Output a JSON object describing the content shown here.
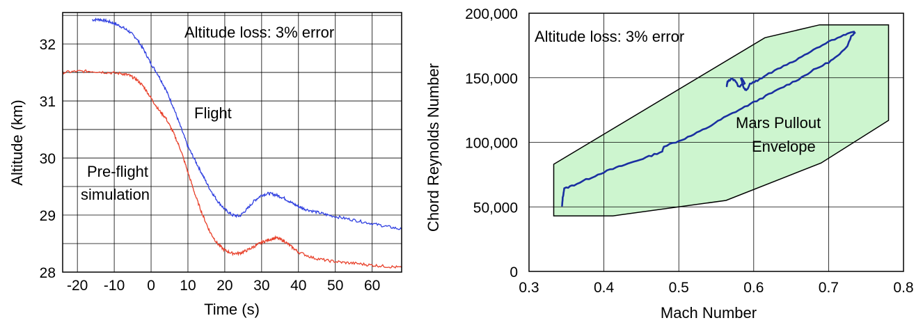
{
  "chart_data": [
    {
      "type": "line",
      "xlabel": "Time (s)",
      "ylabel": "Altitude (km)",
      "xlim": [
        -24,
        68
      ],
      "ylim": [
        28,
        32.55
      ],
      "x_ticks": [
        -20,
        -10,
        0,
        10,
        20,
        30,
        40,
        50,
        60
      ],
      "y_ticks": [
        28,
        29,
        30,
        31,
        32
      ],
      "grid": true,
      "annotation": "Altitude loss: 3% error",
      "series": [
        {
          "name": "Flight",
          "color": "#2f3fe0",
          "x": [
            -16,
            -14,
            -12,
            -10,
            -8,
            -6,
            -4,
            -2,
            0,
            2,
            4,
            6,
            8,
            10,
            12,
            14,
            16,
            18,
            20,
            22,
            24,
            26,
            28,
            30,
            32,
            34,
            36,
            38,
            40,
            42,
            45,
            48,
            52,
            56,
            60,
            64,
            68
          ],
          "y": [
            32.42,
            32.43,
            32.4,
            32.36,
            32.3,
            32.22,
            32.1,
            31.9,
            31.65,
            31.45,
            31.2,
            30.9,
            30.55,
            30.2,
            29.95,
            29.7,
            29.45,
            29.25,
            29.1,
            29.0,
            28.98,
            29.1,
            29.25,
            29.35,
            29.38,
            29.35,
            29.3,
            29.22,
            29.15,
            29.1,
            29.05,
            29.0,
            28.95,
            28.9,
            28.85,
            28.8,
            28.75
          ]
        },
        {
          "name": "Pre-flight simulation",
          "color": "#e8402a",
          "x": [
            -24,
            -20,
            -16,
            -12,
            -8,
            -6,
            -4,
            -2,
            0,
            2,
            4,
            6,
            8,
            10,
            12,
            14,
            16,
            18,
            20,
            22,
            24,
            26,
            28,
            30,
            32,
            34,
            36,
            38,
            40,
            44,
            48,
            52,
            56,
            60,
            64,
            68
          ],
          "y": [
            31.5,
            31.52,
            31.52,
            31.5,
            31.48,
            31.45,
            31.38,
            31.25,
            31.05,
            30.85,
            30.7,
            30.45,
            30.15,
            29.75,
            29.35,
            29.0,
            28.7,
            28.5,
            28.38,
            28.33,
            28.33,
            28.38,
            28.45,
            28.52,
            28.57,
            28.6,
            28.55,
            28.45,
            28.35,
            28.25,
            28.2,
            28.17,
            28.15,
            28.12,
            28.1,
            28.08
          ]
        }
      ],
      "labels": {
        "flight": "Flight",
        "sim_line1": "Pre-flight",
        "sim_line2": "simulation"
      }
    },
    {
      "type": "line",
      "xlabel": "Mach Number",
      "ylabel": "Chord Reynolds Number",
      "xlim": [
        0.3,
        0.8
      ],
      "ylim": [
        0,
        200000
      ],
      "x_ticks": [
        "0.3",
        "0.4",
        "0.5",
        "0.6",
        "0.7",
        "0.8"
      ],
      "y_ticks": [
        "0",
        "50,000",
        "100,000",
        "150,000",
        "200,000"
      ],
      "y_tick_values": [
        0,
        50000,
        100000,
        150000,
        200000
      ],
      "grid": true,
      "annotation": "Altitude loss: 3% error",
      "envelope_label": [
        "Mars Pullout",
        "Envelope"
      ],
      "envelope_color": "#cdf5cf",
      "envelope": {
        "x": [
          0.333,
          0.333,
          0.615,
          0.688,
          0.78,
          0.78,
          0.69,
          0.563,
          0.412,
          0.333
        ],
        "y": [
          83000,
          83000,
          181000,
          191000,
          191000,
          117000,
          84000,
          55000,
          43000,
          43000
        ]
      },
      "trajectory": {
        "color": "#1a2fa0",
        "x": [
          0.344,
          0.345,
          0.347,
          0.36,
          0.38,
          0.4,
          0.42,
          0.44,
          0.46,
          0.478,
          0.48,
          0.5,
          0.52,
          0.54,
          0.56,
          0.58,
          0.6,
          0.62,
          0.64,
          0.66,
          0.68,
          0.7,
          0.715,
          0.725,
          0.73,
          0.735,
          0.733,
          0.72,
          0.7,
          0.68,
          0.66,
          0.64,
          0.62,
          0.605,
          0.595,
          0.59,
          0.586,
          0.583,
          0.588,
          0.58,
          0.575,
          0.57,
          0.565,
          0.564,
          0.566
        ],
        "y": [
          50000,
          57000,
          64000,
          67000,
          72000,
          77000,
          81000,
          85000,
          89000,
          93000,
          97000,
          101000,
          106000,
          112000,
          119000,
          125000,
          131000,
          137000,
          143000,
          149000,
          156000,
          162000,
          168000,
          175000,
          182000,
          185000,
          186000,
          183000,
          178000,
          172000,
          165000,
          159000,
          153000,
          148000,
          145000,
          140000,
          143000,
          150000,
          146000,
          143000,
          148000,
          149000,
          147000,
          144000,
          148000
        ]
      }
    }
  ]
}
